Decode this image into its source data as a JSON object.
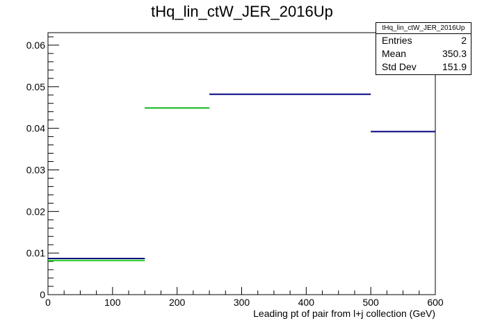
{
  "chart_data": {
    "type": "histogram",
    "title": "tHq_lin_ctW_JER_2016Up",
    "xlabel": "Leading pt of pair from l+j collection (GeV)",
    "ylabel": "",
    "xlim": [
      0,
      600
    ],
    "ylim": [
      0,
      0.063
    ],
    "x_ticks": [
      "0",
      "100",
      "200",
      "300",
      "400",
      "500",
      "600"
    ],
    "y_ticks": [
      "0",
      "0.01",
      "0.02",
      "0.03",
      "0.04",
      "0.05",
      "0.06"
    ],
    "series": [
      {
        "color": "#000080",
        "bins": [
          {
            "x0": 0,
            "x1": 150,
            "y": 0.0087
          },
          {
            "x0": 150,
            "x1": 250,
            "y": 0.0449
          },
          {
            "x0": 250,
            "x1": 500,
            "y": 0.0482
          },
          {
            "x0": 500,
            "x1": 600,
            "y": 0.0392
          }
        ]
      },
      {
        "color": "#22cc22",
        "bins": [
          {
            "x0": 0,
            "x1": 150,
            "y": 0.0082
          },
          {
            "x0": 150,
            "x1": 250,
            "y": 0.0449
          }
        ]
      }
    ],
    "grid": false,
    "legend": "none"
  },
  "stats": {
    "title": "tHq_lin_ctW_JER_2016Up",
    "rows": [
      {
        "label": "Entries",
        "value": "2"
      },
      {
        "label": "Mean",
        "value": "350.3"
      },
      {
        "label": "Std Dev",
        "value": "151.9"
      }
    ]
  }
}
